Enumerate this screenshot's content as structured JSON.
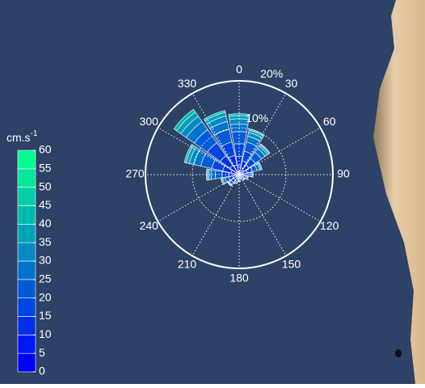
{
  "chart_data": {
    "type": "rose",
    "directions": [
      0,
      22.5,
      45,
      67.5,
      90,
      112.5,
      135,
      157.5,
      180,
      202.5,
      225,
      247.5,
      270,
      292.5,
      315,
      337.5
    ],
    "series": [
      {
        "values": [
          0.6,
          0.5,
          0.4,
          0.3,
          0.2,
          0.2,
          0.1,
          0.1,
          0.1,
          0.2,
          0.2,
          0.2,
          0.4,
          0.6,
          0.8,
          0.7
        ]
      },
      {
        "values": [
          1.3,
          1,
          0.8,
          0.6,
          0.4,
          0.3,
          0.3,
          0.2,
          0.3,
          0.4,
          0.5,
          0.5,
          0.7,
          1.2,
          1.6,
          1.4
        ]
      },
      {
        "values": [
          2,
          1.5,
          1.3,
          0.9,
          0.6,
          0.5,
          0.4,
          0.3,
          0.4,
          0.5,
          0.7,
          0.7,
          1.1,
          1.8,
          2.5,
          2.1
        ]
      },
      {
        "values": [
          2.7,
          2.1,
          1.7,
          1.1,
          0.7,
          0.5,
          0.4,
          0.3,
          0.4,
          0.5,
          0.7,
          0.9,
          1.5,
          2.4,
          3.4,
          2.9
        ]
      },
      {
        "values": [
          2.6,
          2,
          1.6,
          1,
          0.6,
          0.3,
          0.2,
          0.1,
          0.2,
          0.3,
          0.5,
          0.8,
          1.4,
          2.4,
          3.4,
          2.8
        ]
      },
      {
        "values": [
          1.6,
          1.3,
          1,
          0.6,
          0.3,
          0.2,
          0.1,
          0,
          0.1,
          0.1,
          0.2,
          0.5,
          0.9,
          1.5,
          2.1,
          1.7
        ]
      },
      {
        "values": [
          1.1,
          0.8,
          0.6,
          0.3,
          0.2,
          0,
          0,
          0,
          0,
          0,
          0.1,
          0.3,
          0.5,
          1,
          1.4,
          1.2
        ]
      },
      {
        "values": [
          0.7,
          0.5,
          0.4,
          0.2,
          0,
          0,
          0,
          0,
          0,
          0,
          0.1,
          0.1,
          0.3,
          0.7,
          1.1,
          0.8
        ]
      },
      {
        "values": [
          0.4,
          0.3,
          0.2,
          0,
          0,
          0,
          0,
          0,
          0,
          0,
          0,
          0,
          0.2,
          0.4,
          0.7,
          0.4
        ]
      }
    ],
    "rlim": [
      0,
      20
    ],
    "rticks": [
      {
        "value": 10,
        "label": "10%"
      },
      {
        "value": 20,
        "label": "20%"
      }
    ],
    "thetaticks": [
      0,
      30,
      60,
      90,
      120,
      150,
      180,
      210,
      240,
      270,
      300,
      330
    ],
    "colorbar": {
      "label": "cm.s",
      "label_superscript": "-1",
      "ticks": [
        0,
        5,
        10,
        15,
        20,
        25,
        30,
        35,
        40,
        45,
        50,
        55,
        60
      ],
      "colors": [
        "#0000ff",
        "#0017f5",
        "#002eeb",
        "#0045e0",
        "#005cd6",
        "#0073cc",
        "#008bc2",
        "#00a2b8",
        "#00b9ad",
        "#00d0a3",
        "#00e799",
        "#00ff8f"
      ]
    }
  }
}
